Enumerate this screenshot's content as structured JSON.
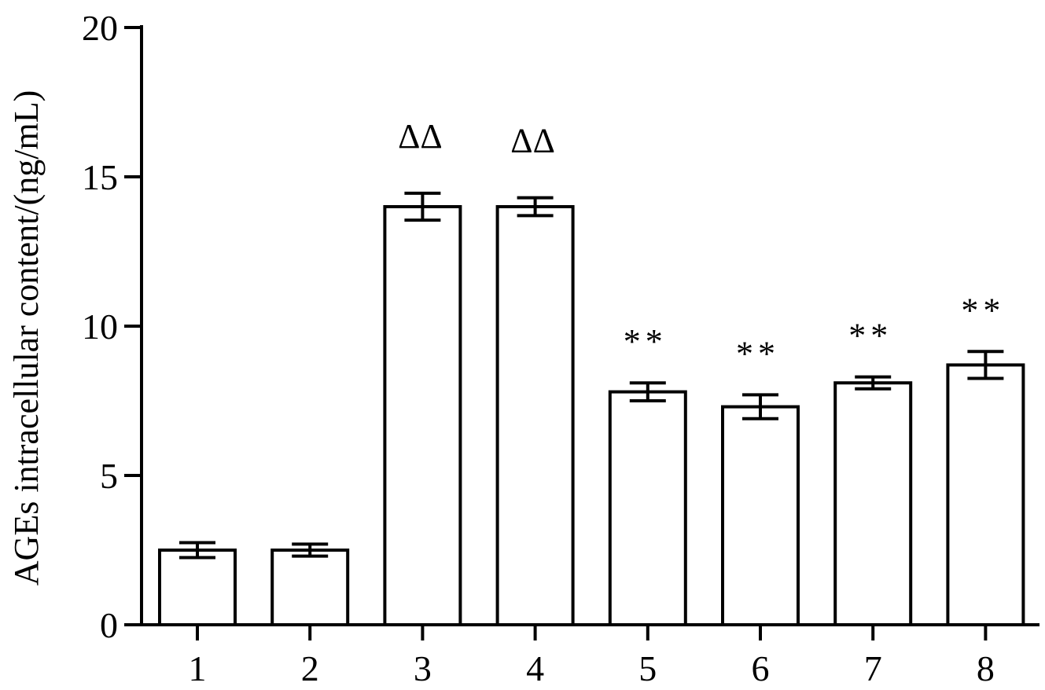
{
  "chart_data": {
    "type": "bar",
    "title": "",
    "xlabel": "",
    "ylabel": "AGEs intracellular content/(ng/mL)",
    "ylim": [
      0,
      20
    ],
    "yticks": [
      "0",
      "5",
      "10",
      "15",
      "20"
    ],
    "categories": [
      "1",
      "2",
      "3",
      "4",
      "5",
      "6",
      "7",
      "8"
    ],
    "values": [
      2.5,
      2.5,
      14.0,
      14.0,
      7.8,
      7.3,
      8.1,
      8.7
    ],
    "errors": [
      0.25,
      0.2,
      0.45,
      0.3,
      0.3,
      0.4,
      0.2,
      0.45
    ],
    "annotations": [
      "",
      "",
      "ΔΔ",
      "ΔΔ",
      "**",
      "**",
      "**",
      "**"
    ],
    "grid": false,
    "legend": "none",
    "bar_fill": "#ffffff",
    "bar_stroke": "#000000"
  }
}
